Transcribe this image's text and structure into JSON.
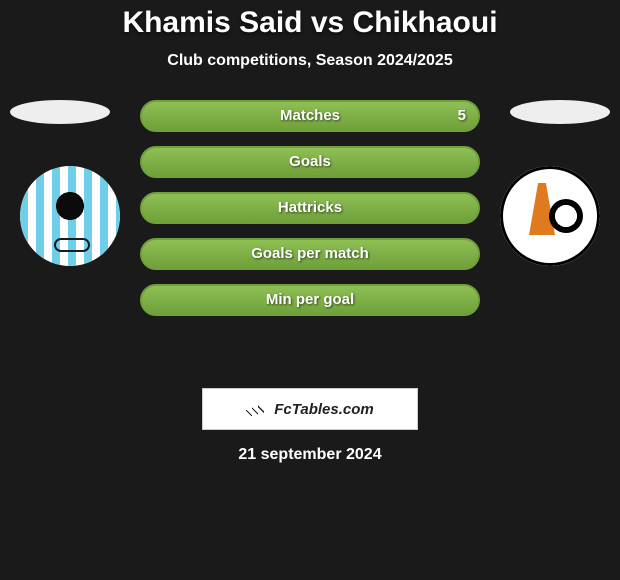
{
  "title": {
    "text": "Khamis Said vs Chikhaoui",
    "fontsize": 30,
    "color": "#ffffff"
  },
  "subtitle": {
    "text": "Club competitions, Season 2024/2025",
    "fontsize": 16
  },
  "colors": {
    "background": "#1a1a1a",
    "bar_border": "#6fa03a",
    "bar_fill": "#8fc056",
    "oval": "#eeeeee"
  },
  "left_club": {
    "name": "left-club",
    "badge_primary": "#6fcfe8",
    "badge_secondary": "#ffffff"
  },
  "right_club": {
    "name": "right-club",
    "badge_primary": "#e07a1f",
    "badge_secondary": "#000000"
  },
  "bars": {
    "label_fontsize": 15,
    "value_fontsize": 15,
    "height": 32,
    "radius": 18,
    "items": [
      {
        "label": "Matches",
        "left": "",
        "right": "5",
        "fill_left_pct": 50,
        "fill_right_pct": 50,
        "first": true
      },
      {
        "label": "Goals",
        "left": "",
        "right": "",
        "fill_left_pct": 50,
        "fill_right_pct": 50
      },
      {
        "label": "Hattricks",
        "left": "",
        "right": "",
        "fill_left_pct": 50,
        "fill_right_pct": 50
      },
      {
        "label": "Goals per match",
        "left": "",
        "right": "",
        "fill_left_pct": 50,
        "fill_right_pct": 50
      },
      {
        "label": "Min per goal",
        "left": "",
        "right": "",
        "fill_left_pct": 50,
        "fill_right_pct": 50
      }
    ]
  },
  "logo": {
    "text": "FcTables.com",
    "fontsize": 15
  },
  "date": {
    "text": "21 september 2024",
    "fontsize": 16
  }
}
